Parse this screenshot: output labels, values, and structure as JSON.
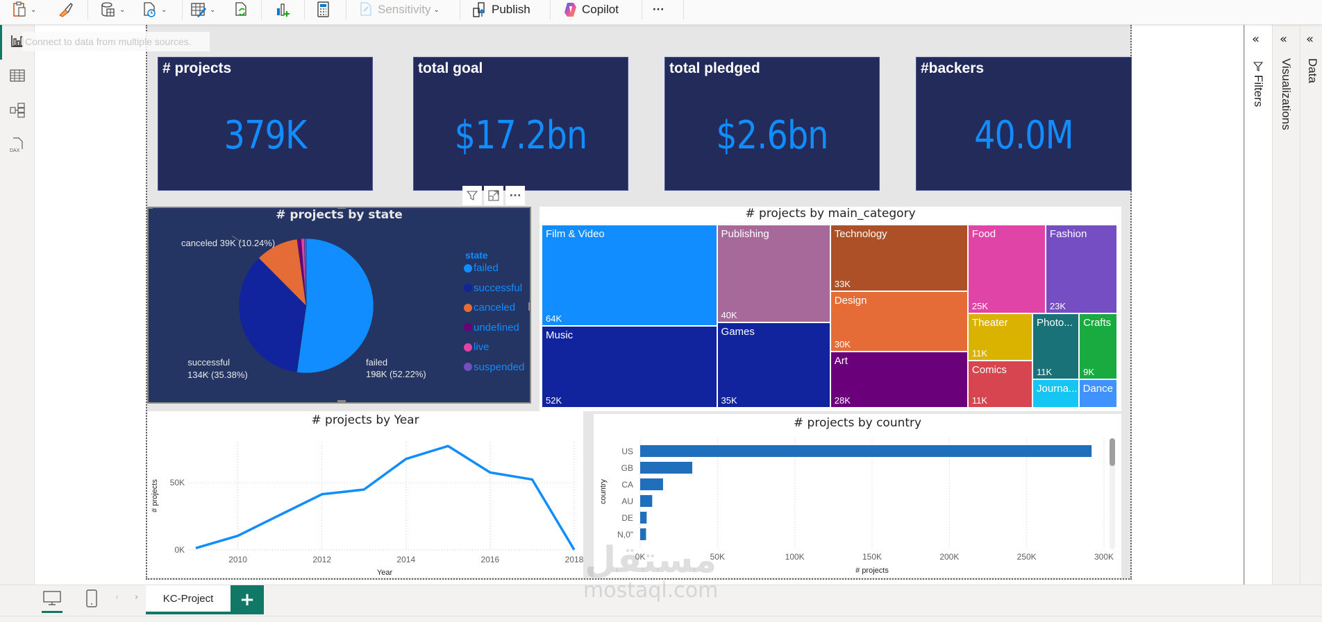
{
  "toolbar": {
    "items": [
      {
        "name": "paste",
        "icon": "clipboard-icon"
      },
      {
        "name": "format-painter",
        "icon": "paintbrush-icon"
      },
      {
        "name": "get-data",
        "icon": "database-icon"
      },
      {
        "name": "recent-sources",
        "icon": "clock-file-icon"
      },
      {
        "name": "transform-data",
        "icon": "table-edit-icon"
      },
      {
        "name": "refresh",
        "icon": "refresh-icon"
      },
      {
        "name": "new-visual",
        "icon": "add-chart-icon"
      },
      {
        "name": "new-measure",
        "icon": "calculator-icon"
      }
    ],
    "sensitivity_label": "Sensitivity",
    "publish_label": "Publish",
    "copilot_label": "Copilot",
    "more_label": "···"
  },
  "tooltip": "Connect to data from multiple sources.",
  "leftnav": {
    "items": [
      {
        "name": "report-view",
        "active": true
      },
      {
        "name": "table-view",
        "active": false
      },
      {
        "name": "model-view",
        "active": false
      },
      {
        "name": "dax-query-view",
        "active": false
      }
    ],
    "dax_label": "DAX"
  },
  "kpis": [
    {
      "title": "# projects",
      "value": "379K"
    },
    {
      "title": "total goal",
      "value": "$17.2bn"
    },
    {
      "title": "total pledged",
      "value": "$2.6bn"
    },
    {
      "title": "#backers",
      "value": "40.0M"
    }
  ],
  "visual_header": {
    "filter": "filter-icon",
    "focus": "focus-mode-icon",
    "more": "···"
  },
  "colors": {
    "accent": "#118dff",
    "card_bg": "#232b5b",
    "pie_bg": "#243463",
    "page_tab": "#117865"
  },
  "chart_data": [
    {
      "type": "pie",
      "title": "# projects by state",
      "legend_title": "state",
      "legend_position": "right",
      "slices": [
        {
          "label": "failed",
          "value": 198000,
          "percent": 52.22,
          "display": "198K (52.22%)",
          "color": "#118dff"
        },
        {
          "label": "successful",
          "value": 134000,
          "percent": 35.38,
          "display": "134K (35.38%)",
          "color": "#12239e"
        },
        {
          "label": "canceled",
          "value": 39000,
          "percent": 10.24,
          "display": "39K (10.24%)",
          "color": "#e66c37"
        },
        {
          "label": "undefined",
          "value": 3600,
          "percent": 0.94,
          "display": "",
          "color": "#6b007b"
        },
        {
          "label": "live",
          "value": 2800,
          "percent": 0.74,
          "display": "",
          "color": "#e044a7"
        },
        {
          "label": "suspended",
          "value": 1800,
          "percent": 0.48,
          "display": "",
          "color": "#744ec2"
        }
      ]
    },
    {
      "type": "treemap",
      "title": "# projects by main_category",
      "items": [
        {
          "label": "Film & Video",
          "value": 64000,
          "display": "64K",
          "color": "#118dff"
        },
        {
          "label": "Music",
          "value": 52000,
          "display": "52K",
          "color": "#12239e"
        },
        {
          "label": "Publishing",
          "value": 40000,
          "display": "40K",
          "color": "#a66999"
        },
        {
          "label": "Games",
          "value": 35000,
          "display": "35K",
          "color": "#12239e"
        },
        {
          "label": "Technology",
          "value": 33000,
          "display": "33K",
          "color": "#ad4f27"
        },
        {
          "label": "Design",
          "value": 30000,
          "display": "30K",
          "color": "#e66c37"
        },
        {
          "label": "Art",
          "value": 28000,
          "display": "28K",
          "color": "#6b007b"
        },
        {
          "label": "Food",
          "value": 25000,
          "display": "25K",
          "color": "#e044a7"
        },
        {
          "label": "Fashion",
          "value": 23000,
          "display": "23K",
          "color": "#744ec2"
        },
        {
          "label": "Theater",
          "value": 11000,
          "display": "11K",
          "color": "#d9b300"
        },
        {
          "label": "Comics",
          "value": 11000,
          "display": "11K",
          "color": "#d64550"
        },
        {
          "label": "Photo...",
          "value": 11000,
          "display": "11K",
          "color": "#197278"
        },
        {
          "label": "Crafts",
          "value": 9000,
          "display": "9K",
          "color": "#1aab40"
        },
        {
          "label": "Journa...",
          "value": 4800,
          "display": "",
          "color": "#15c6f4"
        },
        {
          "label": "Dance",
          "value": 4000,
          "display": "",
          "color": "#4092ff"
        }
      ]
    },
    {
      "type": "line",
      "title": "# projects by Year",
      "xlabel": "Year",
      "ylabel": "# projects",
      "x": [
        2009,
        2010,
        2011,
        2012,
        2013,
        2014,
        2015,
        2016,
        2017,
        2018
      ],
      "series": [
        {
          "name": "# projects",
          "values": [
            1300,
            10500,
            26000,
            41400,
            44900,
            67700,
            77300,
            57600,
            52400,
            100
          ],
          "color": "#118dff"
        }
      ],
      "xticks": [
        "2010",
        "2012",
        "2014",
        "2016",
        "2018"
      ],
      "yticks": [
        "0K",
        "50K"
      ],
      "xlim": [
        2009,
        2018
      ],
      "ylim": [
        0,
        80000
      ],
      "grid": true
    },
    {
      "type": "bar",
      "orientation": "horizontal",
      "title": "# projects by country",
      "xlabel": "# projects",
      "ylabel": "country",
      "categories": [
        "US",
        "GB",
        "CA",
        "AU",
        "DE",
        "N,0\""
      ],
      "values": [
        292000,
        33700,
        14800,
        7800,
        4200,
        3800
      ],
      "xticks": [
        "0K",
        "50K",
        "100K",
        "150K",
        "200K",
        "250K",
        "300K"
      ],
      "xlim": [
        0,
        300000
      ],
      "grid": true,
      "color": "#1f6fbd"
    }
  ],
  "right_panes": {
    "filters": "Filters",
    "visualizations": "Visualizations",
    "data": "Data"
  },
  "bottom": {
    "page_tab": "KC-Project",
    "add_page": "+"
  },
  "watermark": {
    "arabic": "مستقل",
    "latin": "mostaql.com"
  }
}
